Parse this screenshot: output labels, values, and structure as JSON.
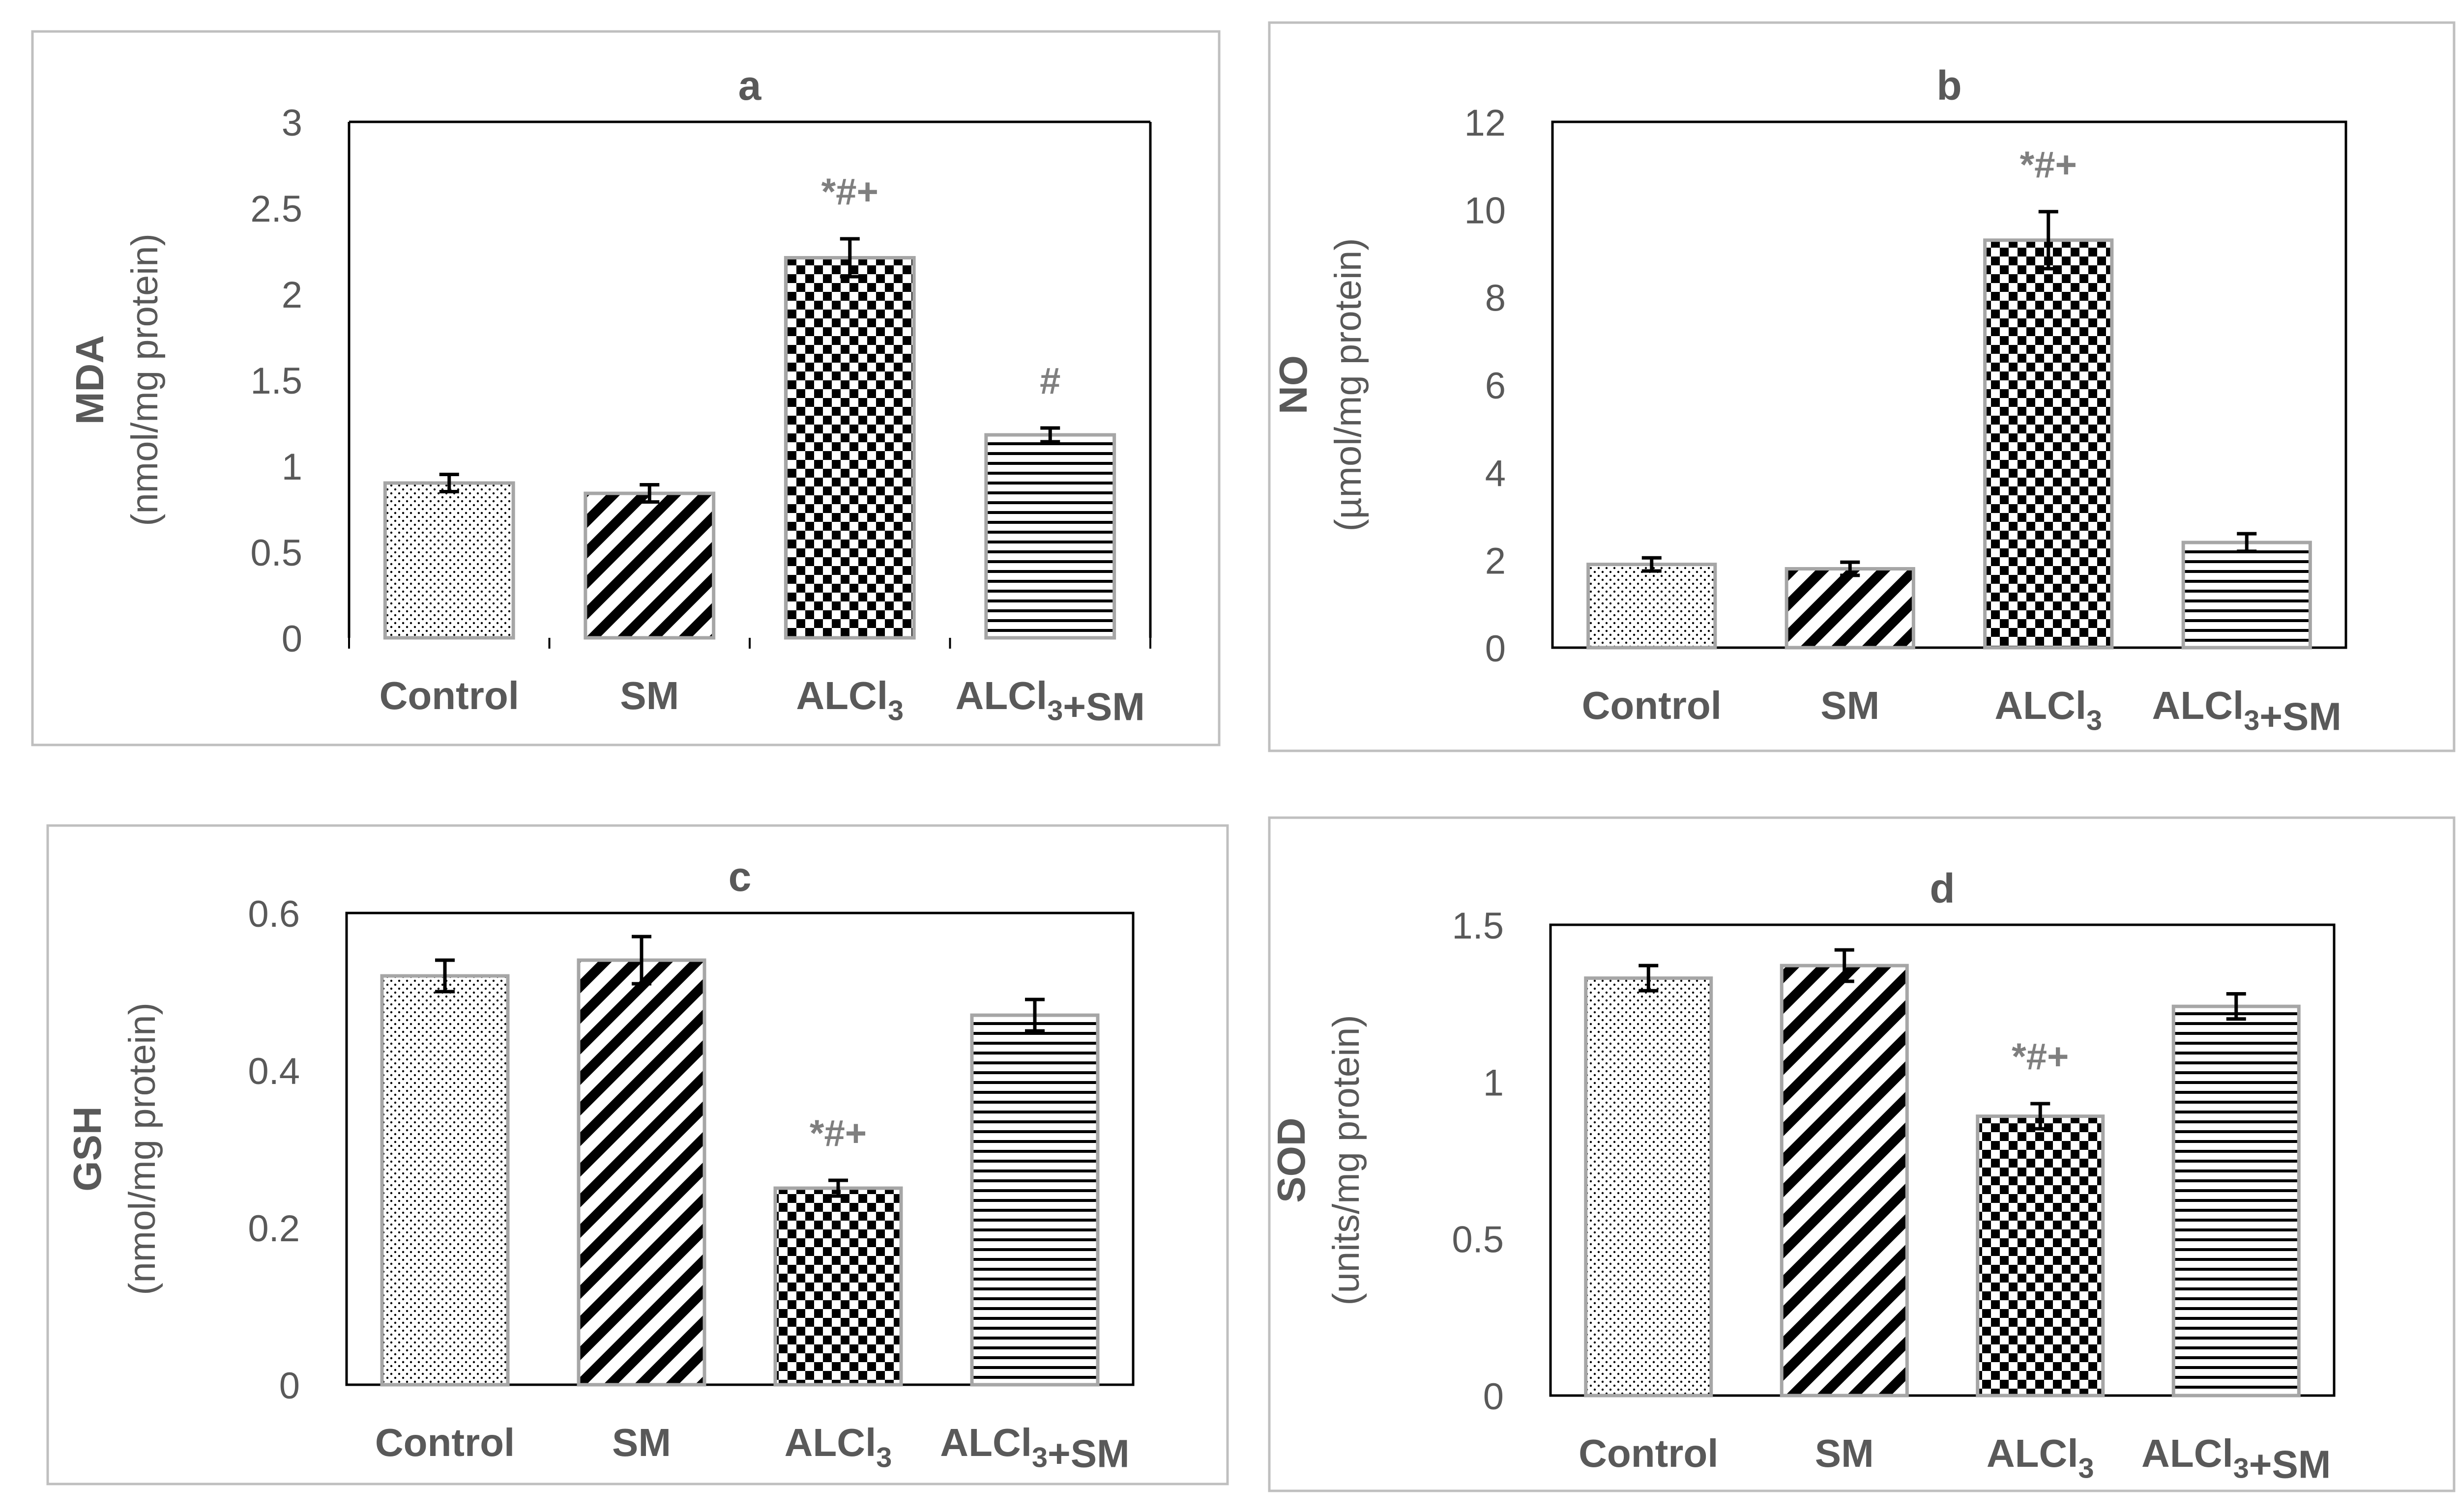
{
  "colors": {
    "panel_border": "#bfbfbf",
    "axis": "#000000",
    "bar_border": "#a6a6a6",
    "bar_pattern": "#000000",
    "text": "#595959",
    "annotation": "#7f7f7f"
  },
  "chart_data": [
    {
      "type": "bar",
      "title": "a",
      "ylabel_main": "MDA",
      "ylabel_unit": "(nmol/mg protein)",
      "ylim": [
        0,
        3
      ],
      "yticks": [
        "0",
        "0.5",
        "1",
        "1.5",
        "2",
        "2.5",
        "3"
      ],
      "ytick_values": [
        0,
        0.5,
        1,
        1.5,
        2,
        2.5,
        3
      ],
      "categories": [
        "Control",
        "SM",
        "ALCl₃",
        "ALCl₃+SM"
      ],
      "values": [
        0.9,
        0.84,
        2.21,
        1.18
      ],
      "errors": [
        0.05,
        0.05,
        0.11,
        0.04
      ],
      "annotations": [
        "",
        "",
        "*#+",
        "#"
      ],
      "patterns": [
        "dots",
        "diagonal",
        "checker",
        "horizontal"
      ],
      "grid": false
    },
    {
      "type": "bar",
      "title": "b",
      "ylabel_main": "NO",
      "ylabel_unit": "(µmol/mg protein)",
      "ylim": [
        0,
        12
      ],
      "yticks": [
        "0",
        "2",
        "4",
        "6",
        "8",
        "10",
        "12"
      ],
      "ytick_values": [
        0,
        2,
        4,
        6,
        8,
        10,
        12
      ],
      "categories": [
        "Control",
        "SM",
        "ALCl₃",
        "ALCl₃+SM"
      ],
      "values": [
        1.9,
        1.8,
        9.3,
        2.4
      ],
      "errors": [
        0.15,
        0.15,
        0.65,
        0.2
      ],
      "annotations": [
        "",
        "",
        "*#+",
        ""
      ],
      "patterns": [
        "dots",
        "diagonal",
        "checker",
        "horizontal"
      ],
      "grid": false
    },
    {
      "type": "bar",
      "title": "c",
      "ylabel_main": "GSH",
      "ylabel_unit": "(nmol/mg protein)",
      "ylim": [
        0,
        0.6
      ],
      "yticks": [
        "0",
        "0.2",
        "0.4",
        "0.6"
      ],
      "ytick_values": [
        0,
        0.2,
        0.4,
        0.6
      ],
      "categories": [
        "Control",
        "SM",
        "ALCl₃",
        "ALCl₃+SM"
      ],
      "values": [
        0.52,
        0.54,
        0.25,
        0.47
      ],
      "errors": [
        0.02,
        0.03,
        0.01,
        0.02
      ],
      "annotations": [
        "",
        "",
        "*#+",
        ""
      ],
      "patterns": [
        "dots",
        "diagonal",
        "checker",
        "horizontal"
      ],
      "grid": false
    },
    {
      "type": "bar",
      "title": "d",
      "ylabel_main": "SOD",
      "ylabel_unit": "(units/mg protein)",
      "ylim": [
        0,
        1.5
      ],
      "yticks": [
        "0",
        "0.5",
        "1",
        "1.5"
      ],
      "ytick_values": [
        0,
        0.5,
        1,
        1.5
      ],
      "categories": [
        "Control",
        "SM",
        "ALCl₃",
        "ALCl₃+SM"
      ],
      "values": [
        1.33,
        1.37,
        0.89,
        1.24
      ],
      "errors": [
        0.04,
        0.05,
        0.04,
        0.04
      ],
      "annotations": [
        "",
        "",
        "*#+",
        ""
      ],
      "patterns": [
        "dots",
        "diagonal",
        "checker",
        "horizontal"
      ],
      "grid": false
    }
  ]
}
